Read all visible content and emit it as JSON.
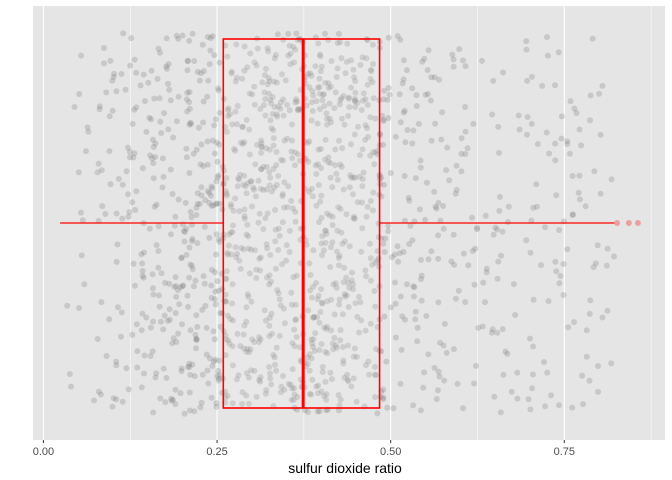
{
  "chart_data": {
    "type": "scatter",
    "subtype": "jittered points with horizontal boxplot overlay",
    "title": "",
    "xlabel": "sulfur dioxide ratio",
    "ylabel": "",
    "xlim": [
      -0.015,
      0.895
    ],
    "xticks": [
      0.0,
      0.25,
      0.5,
      0.75
    ],
    "xtick_labels": [
      "0.00",
      "0.25",
      "0.50",
      "0.75"
    ],
    "grid": true,
    "legend": "none",
    "colors": {
      "panel": "#e5e5e5",
      "grid": "#ffffff",
      "points": "#7f7f7f",
      "box": "#ff0000",
      "outliers": "#ff0000"
    },
    "boxplot": {
      "lower_whisker": 0.024,
      "q1": 0.259,
      "median": 0.374,
      "q3": 0.484,
      "upper_whisker": 0.822,
      "outliers": [
        0.826,
        0.843,
        0.856
      ]
    },
    "points": {
      "count": 1400,
      "x_min": 0.024,
      "x_max": 0.856,
      "note_values": "random vertical jitter"
    }
  }
}
